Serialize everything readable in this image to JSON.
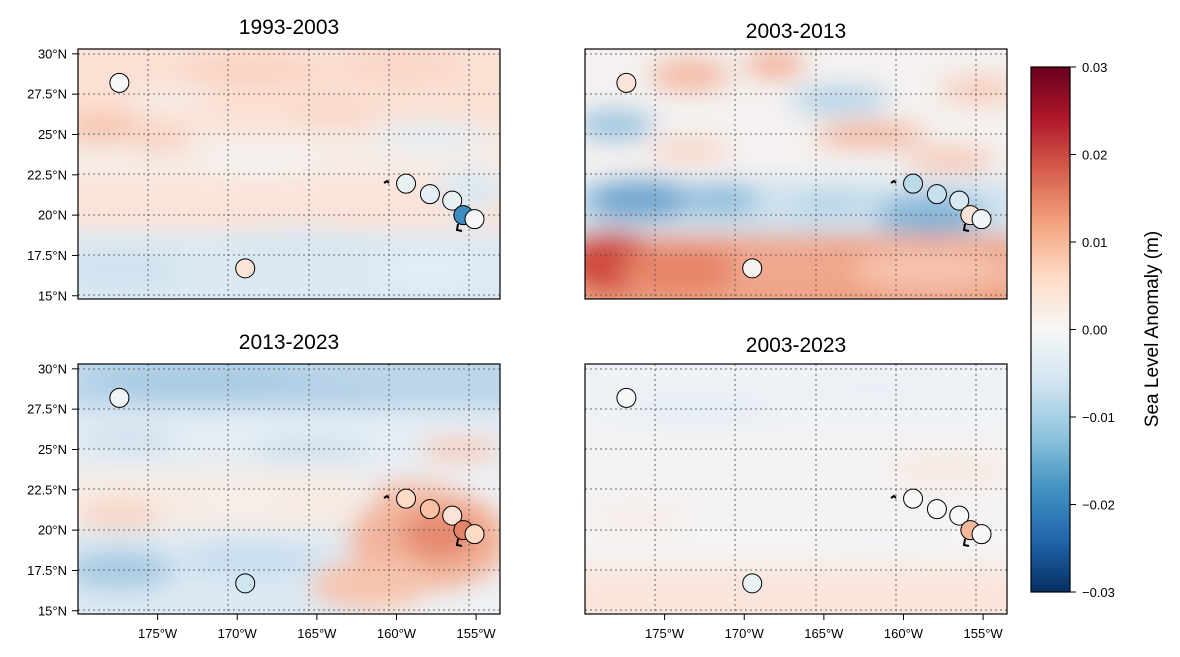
{
  "panels": [
    {
      "title": "1993-2003",
      "stations": [
        {
          "lon": -177.4,
          "lat": 28.2,
          "value": 0.0
        },
        {
          "lon": -169.5,
          "lat": 16.7,
          "value": 0.004
        },
        {
          "lon": -159.4,
          "lat": 21.95,
          "value": -0.002
        },
        {
          "lon": -157.9,
          "lat": 21.3,
          "value": -0.003
        },
        {
          "lon": -156.5,
          "lat": 20.9,
          "value": -0.002
        },
        {
          "lon": -155.8,
          "lat": 20.0,
          "value": -0.019
        },
        {
          "lon": -155.1,
          "lat": 19.75,
          "value": 0.0
        }
      ]
    },
    {
      "title": "2003-2013",
      "stations": [
        {
          "lon": -177.4,
          "lat": 28.2,
          "value": 0.004
        },
        {
          "lon": -169.5,
          "lat": 16.7,
          "value": 0.001
        },
        {
          "lon": -159.4,
          "lat": 21.95,
          "value": -0.008
        },
        {
          "lon": -157.9,
          "lat": 21.3,
          "value": -0.007
        },
        {
          "lon": -156.5,
          "lat": 20.9,
          "value": -0.005
        },
        {
          "lon": -155.8,
          "lat": 20.0,
          "value": 0.004
        },
        {
          "lon": -155.1,
          "lat": 19.75,
          "value": -0.001
        }
      ]
    },
    {
      "title": "2013-2023",
      "stations": [
        {
          "lon": -177.4,
          "lat": 28.2,
          "value": -0.001
        },
        {
          "lon": -169.5,
          "lat": 16.7,
          "value": -0.006
        },
        {
          "lon": -159.4,
          "lat": 21.95,
          "value": 0.006
        },
        {
          "lon": -157.9,
          "lat": 21.3,
          "value": 0.009
        },
        {
          "lon": -156.5,
          "lat": 20.9,
          "value": 0.004
        },
        {
          "lon": -155.8,
          "lat": 20.0,
          "value": 0.015
        },
        {
          "lon": -155.1,
          "lat": 19.75,
          "value": 0.006
        }
      ]
    },
    {
      "title": "2003-2023",
      "stations": [
        {
          "lon": -177.4,
          "lat": 28.2,
          "value": 0.0
        },
        {
          "lon": -169.5,
          "lat": 16.7,
          "value": -0.002
        },
        {
          "lon": -159.4,
          "lat": 21.95,
          "value": 0.0
        },
        {
          "lon": -157.9,
          "lat": 21.3,
          "value": 0.0
        },
        {
          "lon": -156.5,
          "lat": 20.9,
          "value": 0.0
        },
        {
          "lon": -155.8,
          "lat": 20.0,
          "value": 0.01
        },
        {
          "lon": -155.1,
          "lat": 19.75,
          "value": 0.0
        }
      ]
    }
  ],
  "map": {
    "lon_range": [
      -180,
      -153.5
    ],
    "lat_range": [
      14.8,
      30.3
    ],
    "lon_ticks": [
      -175,
      -170,
      -165,
      -160,
      -155
    ],
    "lon_tick_labels": [
      "175°W",
      "170°W",
      "165°W",
      "160°W",
      "155°W"
    ],
    "lat_ticks": [
      15,
      17.5,
      20,
      22.5,
      25,
      27.5,
      30
    ],
    "lat_tick_labels": [
      "15°N",
      "17.5°N",
      "20°N",
      "22.5°N",
      "25°N",
      "27.5°N",
      "30°N"
    ],
    "gridlines": "dotted"
  },
  "colorbar": {
    "label": "Sea Level Anomaly (m)",
    "cmap": "RdBu_r",
    "range": [
      -0.03,
      0.03
    ],
    "ticks": [
      0.03,
      0.02,
      0.01,
      0.0,
      -0.01,
      -0.02,
      -0.03
    ],
    "tick_labels": [
      "0.03",
      "0.02",
      "0.01",
      "0.00",
      "−0.01",
      "−0.02",
      "−0.03"
    ],
    "colors": [
      "#053061",
      "#2166ac",
      "#4393c3",
      "#92c5de",
      "#d1e5f0",
      "#f7f7f7",
      "#fddbc7",
      "#f4a582",
      "#d6604d",
      "#b2182b",
      "#67001f"
    ]
  }
}
